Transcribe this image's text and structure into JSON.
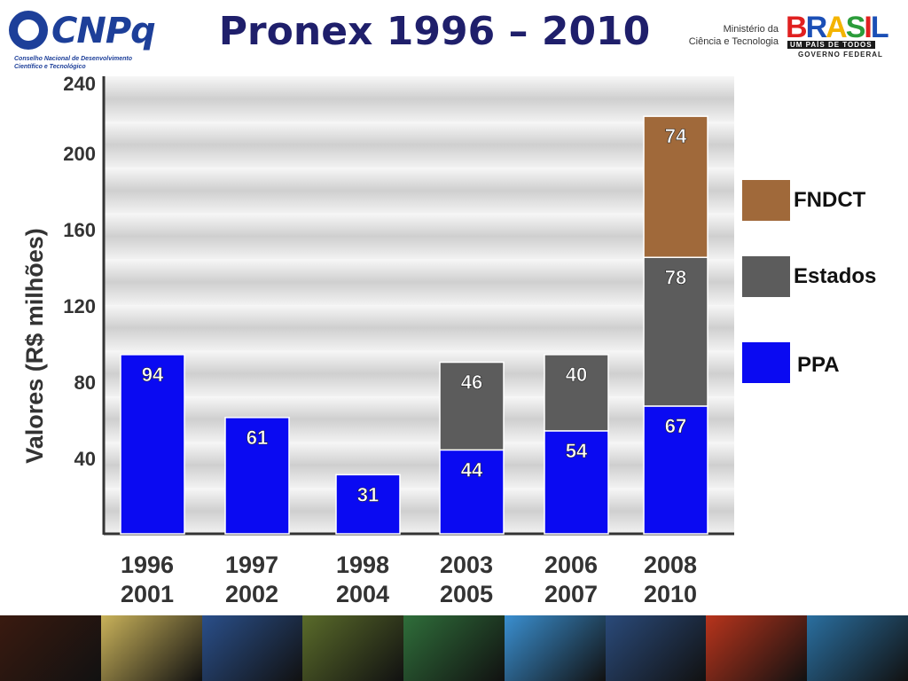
{
  "header": {
    "logo_text": "CNPq",
    "logo_sub_1": "Conselho Nacional de Desenvolvimento",
    "logo_sub_2": "Científico e Tecnológico",
    "title": "Pronex 1996 – 2010",
    "ministry_1": "Ministério da",
    "ministry_2": "Ciência e Tecnologia",
    "brasil_letters": [
      "B",
      "R",
      "A",
      "S",
      "I",
      "L"
    ],
    "brasil_slogan": "UM PAÍS DE TODOS",
    "brasil_gov": "GOVERNO FEDERAL"
  },
  "chart_data": {
    "type": "bar",
    "stacked": true,
    "title": "Pronex 1996 – 2010",
    "ylabel": "Valores  (R$ milhões)",
    "xlabel": "",
    "ylim": [
      0,
      240
    ],
    "yticks": [
      40,
      80,
      120,
      160,
      200,
      240
    ],
    "grid": true,
    "legend_position": "right",
    "categories": [
      [
        "1996",
        "2001"
      ],
      [
        "1997",
        "2002"
      ],
      [
        "1998",
        "2004"
      ],
      [
        "2003",
        "2005"
      ],
      [
        "2006",
        "2007"
      ],
      [
        "2008",
        "2010"
      ]
    ],
    "series": [
      {
        "name": "PPA",
        "color": "#0a0af2",
        "values": [
          94,
          61,
          31,
          44,
          54,
          67
        ]
      },
      {
        "name": "Estados",
        "color": "#5c5c5c",
        "values": [
          0,
          0,
          0,
          46,
          40,
          78
        ]
      },
      {
        "name": "FNDCT",
        "color": "#a0693a",
        "values": [
          0,
          0,
          0,
          0,
          0,
          74
        ]
      }
    ]
  },
  "bottom_strip_colors": [
    "#3a1a10",
    "#c9b25a",
    "#2a4f8a",
    "#5a6b2a",
    "#2f6e3a",
    "#3a8fd0",
    "#2a4a7a",
    "#b8341c",
    "#2a6fa0"
  ]
}
